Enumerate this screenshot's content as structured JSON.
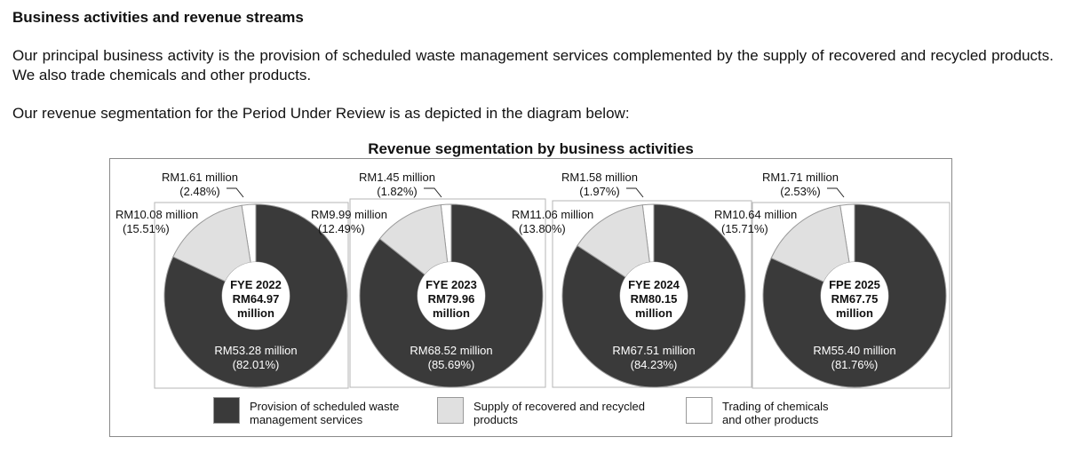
{
  "heading": "Business activities and revenue streams",
  "paragraph1": "Our principal business activity is the provision of scheduled waste management services complemented by the supply of recovered and recycled products. We also trade chemicals and other products.",
  "paragraph2": "Our revenue segmentation for the Period Under Review is as depicted in the diagram below:",
  "colors": {
    "provision": "#3a3a3a",
    "supply": "#e0e0e0",
    "trading": "#ffffff"
  },
  "chart_data": {
    "type": "pie",
    "variant": "donut",
    "title": "Revenue segmentation by business activities",
    "series_names": [
      "Provision of scheduled waste management services",
      "Supply of recovered and recycled products",
      "Trading of chemicals and other products"
    ],
    "legend": [
      {
        "line1": "Provision of scheduled waste",
        "line2": "management services"
      },
      {
        "line1": "Supply of recovered and recycled",
        "line2": "products"
      },
      {
        "line1": "Trading of chemicals",
        "line2": "and other products"
      }
    ],
    "charts": [
      {
        "period": "FYE 2022",
        "total": "RM64.97",
        "unit": "million",
        "slices": [
          {
            "series": "Provision of scheduled waste management services",
            "value": 53.28,
            "percent": 82.01,
            "amount_label": "RM53.28 million",
            "percent_label": "(82.01%)"
          },
          {
            "series": "Supply of recovered and recycled products",
            "value": 10.08,
            "percent": 15.51,
            "amount_label": "RM10.08 million",
            "percent_label": "(15.51%)"
          },
          {
            "series": "Trading of chemicals and other products",
            "value": 1.61,
            "percent": 2.48,
            "amount_label": "RM1.61 million",
            "percent_label": "(2.48%)"
          }
        ]
      },
      {
        "period": "FYE 2023",
        "total": "RM79.96",
        "unit": "million",
        "slices": [
          {
            "series": "Provision of scheduled waste management services",
            "value": 68.52,
            "percent": 85.69,
            "amount_label": "RM68.52 million",
            "percent_label": "(85.69%)"
          },
          {
            "series": "Supply of recovered and recycled products",
            "value": 9.99,
            "percent": 12.49,
            "amount_label": "RM9.99 million",
            "percent_label": "(12.49%)"
          },
          {
            "series": "Trading of chemicals and other products",
            "value": 1.45,
            "percent": 1.82,
            "amount_label": "RM1.45 million",
            "percent_label": "(1.82%)"
          }
        ]
      },
      {
        "period": "FYE 2024",
        "total": "RM80.15",
        "unit": "million",
        "slices": [
          {
            "series": "Provision of scheduled waste management services",
            "value": 67.51,
            "percent": 84.23,
            "amount_label": "RM67.51 million",
            "percent_label": "(84.23%)"
          },
          {
            "series": "Supply of recovered and recycled products",
            "value": 11.06,
            "percent": 13.8,
            "amount_label": "RM11.06 million",
            "percent_label": "(13.80%)"
          },
          {
            "series": "Trading of chemicals and other products",
            "value": 1.58,
            "percent": 1.97,
            "amount_label": "RM1.58 million",
            "percent_label": "(1.97%)"
          }
        ]
      },
      {
        "period": "FPE 2025",
        "total": "RM67.75",
        "unit": "million",
        "slices": [
          {
            "series": "Provision of scheduled waste management services",
            "value": 55.4,
            "percent": 81.76,
            "amount_label": "RM55.40 million",
            "percent_label": "(81.76%)"
          },
          {
            "series": "Supply of recovered and recycled products",
            "value": 10.64,
            "percent": 15.71,
            "amount_label": "RM10.64 million",
            "percent_label": "(15.71%)"
          },
          {
            "series": "Trading of chemicals and other products",
            "value": 1.71,
            "percent": 2.53,
            "amount_label": "RM1.71 million",
            "percent_label": "(2.53%)"
          }
        ]
      }
    ]
  }
}
